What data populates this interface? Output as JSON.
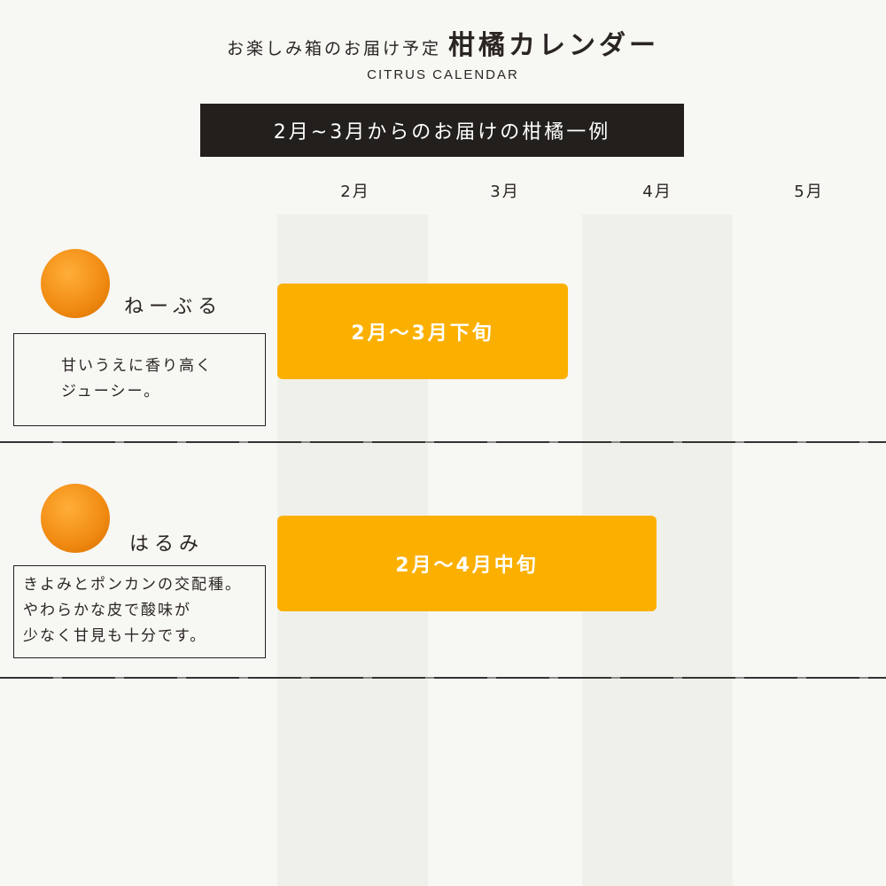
{
  "header": {
    "pre_title": "お楽しみ箱のお届け予定",
    "title": "柑橘カレンダー",
    "subtitle": "CITRUS CALENDAR",
    "banner": "2月~3月からのお届けの柑橘一例"
  },
  "months": [
    "2月",
    "3月",
    "4月",
    "5月"
  ],
  "colors": {
    "bar": "#fbb000",
    "banner": "#231f1c",
    "column_shade": "#f0f0eb"
  },
  "citrus": [
    {
      "name": "ねーぶる",
      "description": [
        "甘いうえに香り高く",
        "ジューシー。"
      ],
      "period": "2月〜3月下旬",
      "icon": "orange-image"
    },
    {
      "name": "はるみ",
      "description": [
        "きよみとポンカンの交配種。",
        "やわらかな皮で酸味が",
        "少なく甘見も十分です。"
      ],
      "period": "2月〜4月中旬",
      "icon": "orange-image"
    }
  ]
}
